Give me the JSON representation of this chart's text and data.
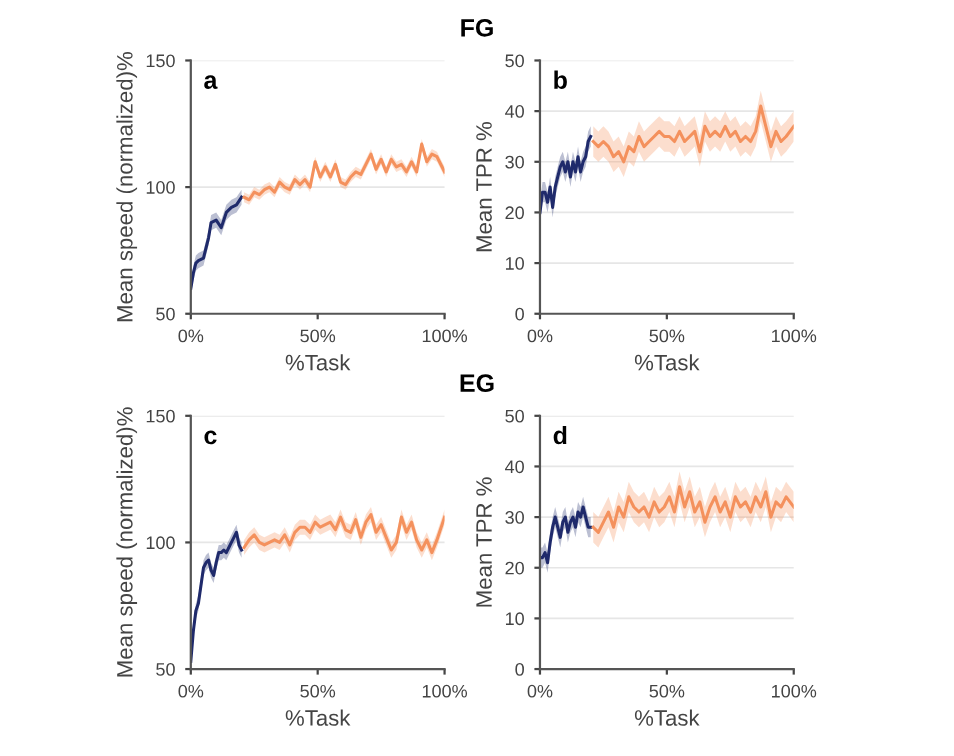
{
  "chart_data": [
    {
      "type": "line",
      "title": "FG",
      "annotations": [
        "a"
      ],
      "xlabel": "%Task",
      "ylabel": "Mean speed (normalized)%",
      "xlim": [
        0,
        100
      ],
      "xticks": [
        {
          "value": 0,
          "label": "0%"
        },
        {
          "value": 50,
          "label": "50%"
        },
        {
          "value": 100,
          "label": "100%"
        }
      ],
      "ylim": [
        50,
        150
      ],
      "yticks": [
        50,
        100,
        150
      ],
      "grid": "y",
      "series": [
        {
          "color": "#1f2a6b",
          "x": [
            0,
            1,
            2,
            3,
            5,
            7,
            8,
            10,
            12,
            14,
            16,
            18,
            20
          ],
          "values": [
            60,
            66,
            70,
            71,
            72,
            80,
            86,
            87,
            84,
            90,
            92,
            93,
            96
          ],
          "lower": [
            57,
            63,
            67,
            68,
            69,
            77,
            83,
            84,
            81,
            87,
            89,
            90,
            93
          ],
          "upper": [
            63,
            69,
            73,
            74,
            75,
            83,
            89,
            90,
            87,
            93,
            95,
            96,
            99
          ]
        },
        {
          "color": "#f4915d",
          "x": [
            21,
            23,
            25,
            27,
            29,
            31,
            33,
            35,
            37,
            39,
            41,
            43,
            45,
            47,
            49,
            51,
            53,
            55,
            57,
            59,
            61,
            63,
            65,
            67,
            69,
            71,
            73,
            75,
            77,
            79,
            81,
            83,
            85,
            87,
            89,
            91,
            93,
            95,
            97,
            100
          ],
          "values": [
            96,
            95,
            98,
            97,
            99,
            100,
            98,
            102,
            100,
            99,
            103,
            101,
            103,
            100,
            110,
            104,
            108,
            104,
            109,
            102,
            101,
            104,
            106,
            105,
            109,
            113,
            107,
            111,
            106,
            111,
            108,
            109,
            106,
            110,
            106,
            117,
            110,
            113,
            112,
            106
          ],
          "lower": [
            94,
            93,
            96,
            95,
            97,
            98,
            96,
            100,
            98,
            97,
            101,
            99,
            101,
            98,
            108,
            102,
            106,
            102,
            107,
            100,
            99,
            102,
            104,
            103,
            107,
            111,
            105,
            109,
            104,
            109,
            106,
            107,
            104,
            108,
            104,
            115,
            108,
            111,
            110,
            104
          ],
          "upper": [
            98,
            97,
            100,
            99,
            101,
            102,
            100,
            104,
            102,
            101,
            105,
            103,
            105,
            102,
            112,
            106,
            110,
            106,
            111,
            104,
            103,
            106,
            108,
            107,
            111,
            115,
            109,
            113,
            108,
            113,
            110,
            111,
            108,
            112,
            108,
            119,
            112,
            115,
            114,
            108
          ]
        }
      ]
    },
    {
      "type": "line",
      "annotations": [
        "b"
      ],
      "xlabel": "%Task",
      "ylabel": "Mean TPR %",
      "xlim": [
        0,
        100
      ],
      "xticks": [
        {
          "value": 0,
          "label": "0%"
        },
        {
          "value": 50,
          "label": "50%"
        },
        {
          "value": 100,
          "label": "100%"
        }
      ],
      "ylim": [
        0,
        50
      ],
      "yticks": [
        0,
        10,
        20,
        30,
        40,
        50
      ],
      "grid": "y",
      "series": [
        {
          "color": "#1f2a6b",
          "x": [
            0,
            1,
            2,
            3,
            4,
            5,
            6,
            7,
            8,
            9,
            10,
            11,
            12,
            13,
            14,
            15,
            16,
            17,
            18,
            19,
            20
          ],
          "values": [
            20,
            24,
            24,
            22,
            25,
            21,
            25,
            27,
            29,
            30,
            28,
            30,
            27,
            30,
            28,
            31,
            28,
            30,
            31,
            34,
            35
          ],
          "lower": [
            18,
            22,
            22,
            20,
            23,
            19,
            23,
            25,
            27,
            28,
            26,
            28,
            25,
            28,
            26,
            29,
            26,
            28,
            29,
            32,
            33
          ],
          "upper": [
            22,
            26,
            26,
            24,
            27,
            23,
            27,
            29,
            31,
            32,
            30,
            32,
            29,
            32,
            30,
            33,
            30,
            32,
            33,
            36,
            37
          ]
        },
        {
          "color": "#f4915d",
          "x": [
            21,
            23,
            25,
            27,
            29,
            31,
            33,
            35,
            37,
            39,
            41,
            43,
            45,
            47,
            49,
            51,
            53,
            55,
            57,
            59,
            61,
            63,
            65,
            67,
            69,
            71,
            73,
            75,
            77,
            79,
            81,
            83,
            85,
            87,
            89,
            91,
            93,
            95,
            97,
            100
          ],
          "values": [
            34,
            33,
            34,
            33,
            31,
            32,
            30,
            33,
            32,
            35,
            33,
            34,
            35,
            36,
            35,
            35,
            34,
            36,
            34,
            35,
            36,
            32,
            37,
            35,
            36,
            35,
            37,
            35,
            36,
            34,
            35,
            34,
            36,
            41,
            37,
            33,
            36,
            34,
            35,
            37
          ],
          "lower": [
            31,
            30,
            31,
            30,
            28,
            29,
            27,
            30,
            29,
            32,
            30,
            31,
            32,
            33,
            32,
            32,
            31,
            33,
            31,
            32,
            33,
            29,
            34,
            32,
            33,
            32,
            34,
            32,
            33,
            31,
            32,
            31,
            33,
            38,
            34,
            30,
            33,
            31,
            32,
            34
          ],
          "upper": [
            37,
            36,
            37,
            36,
            34,
            35,
            33,
            36,
            35,
            38,
            36,
            37,
            38,
            39,
            38,
            38,
            37,
            39,
            37,
            38,
            39,
            35,
            40,
            38,
            39,
            38,
            40,
            38,
            39,
            37,
            38,
            37,
            39,
            44,
            40,
            36,
            39,
            37,
            38,
            40
          ]
        }
      ]
    },
    {
      "type": "line",
      "title": "EG",
      "annotations": [
        "c"
      ],
      "xlabel": "%Task",
      "ylabel": "Mean speed (normalized)%",
      "xlim": [
        0,
        100
      ],
      "xticks": [
        {
          "value": 0,
          "label": "0%"
        },
        {
          "value": 50,
          "label": "50%"
        },
        {
          "value": 100,
          "label": "100%"
        }
      ],
      "ylim": [
        50,
        150
      ],
      "yticks": [
        50,
        100,
        150
      ],
      "grid": "y",
      "series": [
        {
          "color": "#1f2a6b",
          "x": [
            0,
            1,
            2,
            3,
            5,
            6,
            7,
            8,
            9,
            10,
            11,
            12,
            13,
            14,
            15,
            16,
            17,
            18,
            19,
            20
          ],
          "values": [
            53,
            65,
            73,
            76,
            90,
            92,
            93,
            89,
            87,
            92,
            96,
            96,
            97,
            96,
            98,
            100,
            102,
            104,
            99,
            97
          ],
          "lower": [
            50,
            62,
            70,
            73,
            87,
            89,
            90,
            86,
            84,
            89,
            93,
            93,
            94,
            93,
            95,
            97,
            99,
            101,
            96,
            94
          ],
          "upper": [
            56,
            68,
            76,
            79,
            93,
            95,
            96,
            92,
            90,
            95,
            99,
            99,
            100,
            99,
            101,
            103,
            105,
            107,
            102,
            100
          ]
        },
        {
          "color": "#f4915d",
          "x": [
            21,
            23,
            25,
            27,
            29,
            31,
            33,
            35,
            37,
            39,
            41,
            43,
            45,
            47,
            49,
            51,
            53,
            55,
            57,
            59,
            61,
            63,
            65,
            67,
            69,
            71,
            73,
            75,
            77,
            79,
            81,
            83,
            85,
            87,
            89,
            91,
            93,
            95,
            97,
            100
          ],
          "values": [
            98,
            101,
            103,
            100,
            99,
            100,
            101,
            100,
            103,
            99,
            104,
            106,
            106,
            104,
            108,
            106,
            107,
            108,
            105,
            110,
            105,
            104,
            109,
            102,
            108,
            111,
            104,
            107,
            102,
            97,
            100,
            110,
            104,
            108,
            101,
            97,
            101,
            96,
            101,
            110
          ],
          "lower": [
            95,
            98,
            100,
            97,
            96,
            97,
            98,
            97,
            100,
            96,
            101,
            103,
            103,
            101,
            105,
            103,
            104,
            105,
            102,
            107,
            102,
            101,
            106,
            99,
            105,
            108,
            101,
            104,
            99,
            94,
            97,
            107,
            101,
            105,
            98,
            94,
            98,
            93,
            98,
            107
          ],
          "upper": [
            101,
            104,
            106,
            103,
            102,
            103,
            104,
            103,
            106,
            102,
            107,
            109,
            109,
            107,
            111,
            109,
            110,
            111,
            108,
            113,
            108,
            107,
            112,
            105,
            111,
            114,
            107,
            110,
            105,
            100,
            103,
            113,
            107,
            111,
            104,
            100,
            104,
            99,
            104,
            113
          ]
        }
      ]
    },
    {
      "type": "line",
      "annotations": [
        "d"
      ],
      "xlabel": "%Task",
      "ylabel": "Mean TPR %",
      "xlim": [
        0,
        100
      ],
      "xticks": [
        {
          "value": 0,
          "label": "0%"
        },
        {
          "value": 50,
          "label": "50%"
        },
        {
          "value": 100,
          "label": "100%"
        }
      ],
      "ylim": [
        0,
        50
      ],
      "yticks": [
        0,
        10,
        20,
        30,
        40,
        50
      ],
      "grid": "y",
      "series": [
        {
          "color": "#1f2a6b",
          "x": [
            0,
            1,
            2,
            3,
            4,
            5,
            6,
            7,
            8,
            9,
            10,
            11,
            12,
            13,
            14,
            15,
            16,
            17,
            18,
            19,
            20
          ],
          "values": [
            22,
            22,
            23,
            21,
            25,
            28,
            30,
            28,
            26,
            29,
            30,
            27,
            29,
            30,
            28,
            31,
            30,
            32,
            30,
            28,
            28
          ],
          "lower": [
            20,
            20,
            21,
            19,
            23,
            26,
            28,
            26,
            24,
            27,
            28,
            25,
            27,
            28,
            26,
            29,
            28,
            30,
            28,
            26,
            26
          ],
          "upper": [
            24,
            24,
            25,
            23,
            27,
            30,
            32,
            30,
            28,
            31,
            32,
            29,
            31,
            32,
            30,
            33,
            32,
            34,
            32,
            30,
            30
          ]
        },
        {
          "color": "#f4915d",
          "x": [
            21,
            23,
            25,
            27,
            29,
            31,
            33,
            35,
            37,
            39,
            41,
            43,
            45,
            47,
            49,
            51,
            53,
            55,
            57,
            59,
            61,
            63,
            65,
            67,
            69,
            71,
            73,
            75,
            77,
            79,
            81,
            83,
            85,
            87,
            89,
            91,
            93,
            95,
            97,
            100
          ],
          "values": [
            28,
            27,
            29,
            31,
            28,
            32,
            30,
            34,
            32,
            31,
            32,
            30,
            33,
            31,
            32,
            34,
            31,
            36,
            32,
            35,
            31,
            33,
            29,
            32,
            34,
            31,
            33,
            30,
            34,
            32,
            33,
            31,
            34,
            32,
            35,
            30,
            33,
            32,
            34,
            32
          ],
          "lower": [
            25,
            24,
            26,
            28,
            25,
            29,
            27,
            31,
            29,
            28,
            29,
            27,
            30,
            28,
            29,
            31,
            28,
            33,
            29,
            32,
            28,
            30,
            26,
            29,
            31,
            28,
            30,
            27,
            31,
            29,
            30,
            28,
            31,
            29,
            32,
            27,
            30,
            29,
            31,
            29
          ],
          "upper": [
            31,
            30,
            32,
            34,
            31,
            35,
            33,
            37,
            35,
            34,
            35,
            33,
            36,
            34,
            35,
            37,
            34,
            39,
            35,
            38,
            34,
            36,
            32,
            35,
            37,
            34,
            36,
            33,
            37,
            35,
            36,
            34,
            37,
            35,
            38,
            33,
            36,
            35,
            37,
            35
          ]
        }
      ]
    }
  ]
}
